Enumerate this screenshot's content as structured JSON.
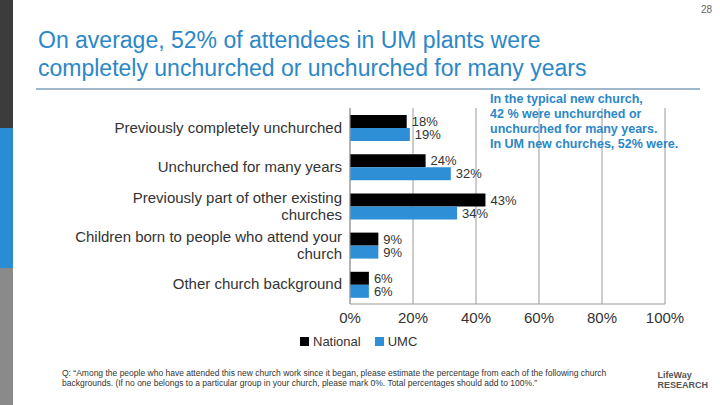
{
  "page_number": "28",
  "logo": [
    "LifeWay",
    "RESEARCH"
  ],
  "chart_data": {
    "type": "bar",
    "orientation": "horizontal",
    "title": [
      "On average, 52% of attendees in UM plants were",
      "completely unchurched or unchurched for many years"
    ],
    "annotation": [
      "In the typical new church,",
      "42 % were unchurched or",
      "unchurched for many years.",
      "In UM new churches, 52% were."
    ],
    "categories": [
      "Previously completely unchurched",
      "Unchurched for many years",
      "Previously part of other existing churches",
      "Children born to people who attend your church",
      "Other church background"
    ],
    "series": [
      {
        "name": "National",
        "color": "#000000",
        "values": [
          18,
          24,
          43,
          9,
          6
        ],
        "value_labels": [
          "18%",
          "24%",
          "43%",
          "9%",
          "6%"
        ]
      },
      {
        "name": "UMC",
        "color": "#2e8fd6",
        "values": [
          19,
          32,
          34,
          9,
          6
        ],
        "value_labels": [
          "19%",
          "32%",
          "34%",
          "9%",
          "6%"
        ]
      }
    ],
    "xlim": [
      0,
      100
    ],
    "xticks": [
      {
        "value": 0,
        "label": "0%"
      },
      {
        "value": 20,
        "label": "20%"
      },
      {
        "value": 40,
        "label": "40%"
      },
      {
        "value": 60,
        "label": "60%"
      },
      {
        "value": 80,
        "label": "80%"
      },
      {
        "value": 100,
        "label": "100%"
      }
    ],
    "grid": true,
    "data_labels": true,
    "legend": "bottom",
    "footnote": "Q: “Among the people who have attended this new church work since it began, please estimate the percentage from each of the following church backgrounds. (If no one belongs to a particular group in your church, please mark 0%. Total percentages should add to 100%.”"
  }
}
